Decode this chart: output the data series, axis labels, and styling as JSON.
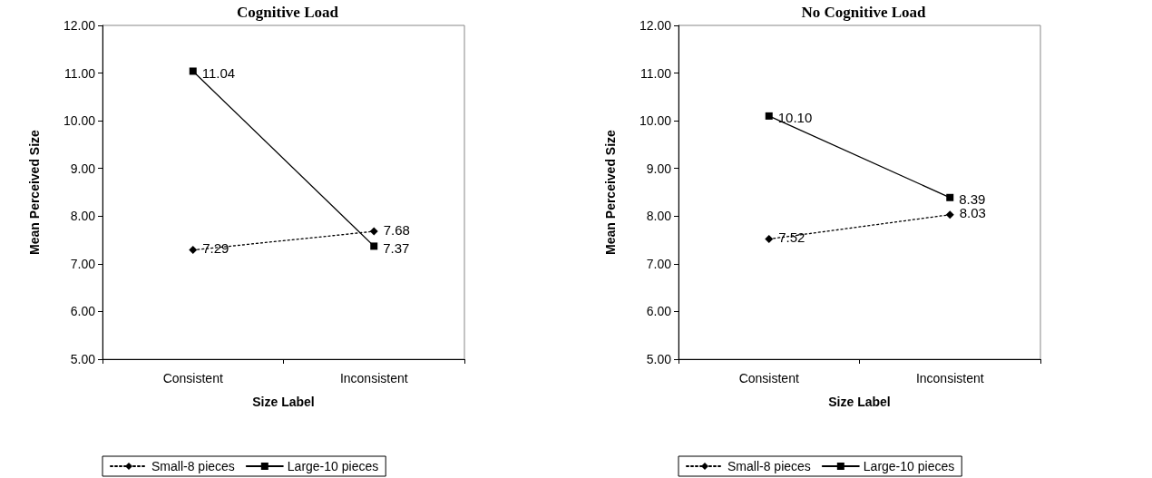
{
  "chart_data": [
    {
      "type": "line",
      "title": "Cognitive Load",
      "xlabel": "Size Label",
      "ylabel": "Mean Perceived Size",
      "categories": [
        "Consistent",
        "Inconsistent"
      ],
      "ylim": [
        5,
        12
      ],
      "yticks": [
        {
          "value": 5,
          "label": "5.00"
        },
        {
          "value": 6,
          "label": "6.00"
        },
        {
          "value": 7,
          "label": "7.00"
        },
        {
          "value": 8,
          "label": "8.00"
        },
        {
          "value": 9,
          "label": "9.00"
        },
        {
          "value": 10,
          "label": "10.00"
        },
        {
          "value": 11,
          "label": "11.00"
        },
        {
          "value": 12,
          "label": "12.00"
        }
      ],
      "grid": false,
      "legend": "bottom",
      "series": [
        {
          "name": "Small-8 pieces",
          "color": "#000000",
          "marker": "diamond",
          "line_style": "dotted",
          "values": [
            7.29,
            7.68
          ],
          "value_labels": [
            "7.29",
            "7.68"
          ]
        },
        {
          "name": "Large-10 pieces",
          "color": "#000000",
          "marker": "square",
          "line_style": "solid",
          "values": [
            11.04,
            7.37
          ],
          "value_labels": [
            "11.04",
            "7.37"
          ]
        }
      ]
    },
    {
      "type": "line",
      "title": "No Cognitive Load",
      "xlabel": "Size Label",
      "ylabel": "Mean Perceived Size",
      "categories": [
        "Consistent",
        "Inconsistent"
      ],
      "ylim": [
        5,
        12
      ],
      "yticks": [
        {
          "value": 5,
          "label": "5.00"
        },
        {
          "value": 6,
          "label": "6.00"
        },
        {
          "value": 7,
          "label": "7.00"
        },
        {
          "value": 8,
          "label": "8.00"
        },
        {
          "value": 9,
          "label": "9.00"
        },
        {
          "value": 10,
          "label": "10.00"
        },
        {
          "value": 11,
          "label": "11.00"
        },
        {
          "value": 12,
          "label": "12.00"
        }
      ],
      "grid": false,
      "legend": "bottom",
      "series": [
        {
          "name": "Small-8 pieces",
          "color": "#000000",
          "marker": "diamond",
          "line_style": "dotted",
          "values": [
            7.52,
            8.03
          ],
          "value_labels": [
            "7.52",
            "8.03"
          ]
        },
        {
          "name": "Large-10 pieces",
          "color": "#000000",
          "marker": "square",
          "line_style": "solid",
          "values": [
            10.1,
            8.39
          ],
          "value_labels": [
            "10.10",
            "8.39"
          ]
        }
      ]
    }
  ]
}
